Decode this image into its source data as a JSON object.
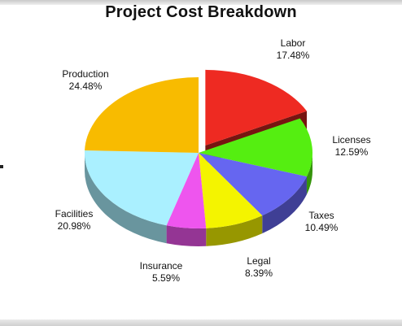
{
  "chart_data": {
    "type": "pie",
    "title": "Project Cost Breakdown",
    "exploded": "Labor",
    "three_d": true,
    "slices": [
      {
        "name": "Labor",
        "label": "Labor",
        "pct_label": "17.48%",
        "value": 17.48,
        "color": "#ee2a22"
      },
      {
        "name": "Licenses",
        "label": "Licenses",
        "pct_label": "12.59%",
        "value": 12.59,
        "color": "#55ee11"
      },
      {
        "name": "Taxes",
        "label": "Taxes",
        "pct_label": "10.49%",
        "value": 10.49,
        "color": "#6666f0"
      },
      {
        "name": "Legal",
        "label": "Legal",
        "pct_label": "8.39%",
        "value": 8.39,
        "color": "#f4f400"
      },
      {
        "name": "Insurance",
        "label": "Insurance",
        "pct_label": "5.59%",
        "value": 5.59,
        "color": "#ee55ee"
      },
      {
        "name": "Facilities",
        "label": "Facilities",
        "pct_label": "20.98%",
        "value": 20.98,
        "color": "#aaf0ff"
      },
      {
        "name": "Production",
        "label": "Production",
        "pct_label": "24.48%",
        "value": 24.48,
        "color": "#f8bb00"
      }
    ]
  }
}
